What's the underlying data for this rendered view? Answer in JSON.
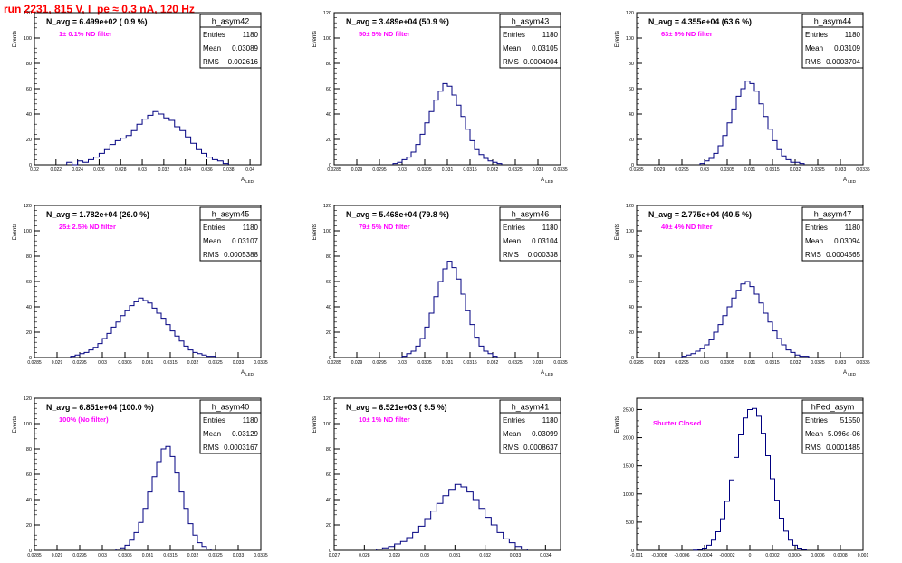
{
  "page": {
    "run_title": "run 2231,   815 V, I_pe ≈ 0.3 nA, 120 Hz",
    "text_color": "#ff0000",
    "filter_label_color": "#ff00ff",
    "hist_color": "#000080"
  },
  "stats_labels": {
    "entries": "Entries",
    "mean": "Mean",
    "rms": "RMS"
  },
  "chart_data": [
    {
      "type": "histogram",
      "name": "h_asym42",
      "navg": "N_avg = 6.499e+02 ( 0.9 %)",
      "filter": "1± 0.1% ND filter",
      "entries": "1180",
      "mean": "0.03089",
      "rms": "0.002616",
      "ylabel": "Events",
      "xlabel": "A_LED",
      "xlim": [
        0.02,
        0.041
      ],
      "ylim": [
        0,
        120
      ],
      "yticks": [
        0,
        20,
        40,
        60,
        80,
        100,
        120
      ],
      "xticks": [
        0.02,
        0.022,
        0.024,
        0.026,
        0.028,
        0.03,
        0.032,
        0.034,
        0.036,
        0.038,
        0.04
      ],
      "xtick_labels": [
        "0.02",
        "0.022",
        "0.024",
        "0.026",
        "0.028",
        "0.03",
        "0.032",
        "0.034",
        "0.036",
        "0.038",
        "0.04"
      ],
      "bins": [
        0.023,
        0.0235,
        0.024,
        0.0245,
        0.025,
        0.0255,
        0.026,
        0.0265,
        0.027,
        0.0275,
        0.028,
        0.0285,
        0.029,
        0.0295,
        0.03,
        0.0305,
        0.031,
        0.0315,
        0.032,
        0.0325,
        0.033,
        0.0335,
        0.034,
        0.0345,
        0.035,
        0.0355,
        0.036,
        0.0365,
        0.037,
        0.0375,
        0.038
      ],
      "counts": [
        2,
        0,
        3,
        2,
        4,
        6,
        9,
        12,
        16,
        19,
        21,
        23,
        27,
        32,
        36,
        39,
        42,
        40,
        37,
        35,
        30,
        27,
        22,
        17,
        12,
        9,
        6,
        4,
        3,
        1
      ]
    },
    {
      "type": "histogram",
      "name": "h_asym43",
      "navg": "N_avg = 3.489e+04 (50.9 %)",
      "filter": "50± 5% ND filter",
      "entries": "1180",
      "mean": "0.03105",
      "rms": "0.0004004",
      "ylabel": "Events",
      "xlabel": "A_LED",
      "xlim": [
        0.0285,
        0.0335
      ],
      "ylim": [
        0,
        120
      ],
      "yticks": [
        0,
        20,
        40,
        60,
        80,
        100,
        120
      ],
      "xticks": [
        0.0285,
        0.029,
        0.0295,
        0.03,
        0.0305,
        0.031,
        0.0315,
        0.032,
        0.0325,
        0.033,
        0.0335
      ],
      "xtick_labels": [
        "0.0285",
        "0.029",
        "0.0295",
        "0.03",
        "0.0305",
        "0.031",
        "0.0315",
        "0.032",
        "0.0325",
        "0.033",
        "0.0335"
      ],
      "bins": [
        0.0298,
        0.0299,
        0.03,
        0.0301,
        0.0302,
        0.0303,
        0.0304,
        0.0305,
        0.0306,
        0.0307,
        0.0308,
        0.0309,
        0.031,
        0.0311,
        0.0312,
        0.0313,
        0.0314,
        0.0315,
        0.0316,
        0.0317,
        0.0318,
        0.0319,
        0.032,
        0.0321,
        0.0322
      ],
      "counts": [
        1,
        2,
        4,
        6,
        10,
        16,
        24,
        33,
        42,
        51,
        58,
        64,
        62,
        55,
        47,
        38,
        28,
        19,
        12,
        8,
        5,
        3,
        2,
        1
      ]
    },
    {
      "type": "histogram",
      "name": "h_asym44",
      "navg": "N_avg = 4.355e+04 (63.6 %)",
      "filter": "63± 5% ND filter",
      "entries": "1180",
      "mean": "0.03109",
      "rms": "0.0003704",
      "ylabel": "Events",
      "xlabel": "A_LED",
      "xlim": [
        0.0285,
        0.0335
      ],
      "ylim": [
        0,
        120
      ],
      "yticks": [
        0,
        20,
        40,
        60,
        80,
        100,
        120
      ],
      "xticks": [
        0.0285,
        0.029,
        0.0295,
        0.03,
        0.0305,
        0.031,
        0.0315,
        0.032,
        0.0325,
        0.033,
        0.0335
      ],
      "xtick_labels": [
        "0.0285",
        "0.029",
        "0.0295",
        "0.03",
        "0.0305",
        "0.031",
        "0.0315",
        "0.032",
        "0.0325",
        "0.033",
        "0.0335"
      ],
      "bins": [
        0.0299,
        0.03,
        0.0301,
        0.0302,
        0.0303,
        0.0304,
        0.0305,
        0.0306,
        0.0307,
        0.0308,
        0.0309,
        0.031,
        0.0311,
        0.0312,
        0.0313,
        0.0314,
        0.0315,
        0.0316,
        0.0317,
        0.0318,
        0.0319,
        0.032,
        0.0321,
        0.0322
      ],
      "counts": [
        1,
        3,
        5,
        9,
        15,
        23,
        33,
        44,
        54,
        60,
        66,
        64,
        58,
        48,
        38,
        28,
        19,
        12,
        7,
        4,
        2,
        2,
        1
      ]
    },
    {
      "type": "histogram",
      "name": "h_asym45",
      "navg": "N_avg = 1.782e+04 (26.0 %)",
      "filter": "25± 2.5% ND filter",
      "entries": "1180",
      "mean": "0.03107",
      "rms": "0.0005388",
      "ylabel": "Events",
      "xlabel": "A_LED",
      "xlim": [
        0.0285,
        0.0335
      ],
      "ylim": [
        0,
        120
      ],
      "yticks": [
        0,
        20,
        40,
        60,
        80,
        100,
        120
      ],
      "xticks": [
        0.0285,
        0.029,
        0.0295,
        0.03,
        0.0305,
        0.031,
        0.0315,
        0.032,
        0.0325,
        0.033,
        0.0335
      ],
      "xtick_labels": [
        "0.0285",
        "0.029",
        "0.0295",
        "0.03",
        "0.0305",
        "0.031",
        "0.0315",
        "0.032",
        "0.0325",
        "0.033",
        "0.0335"
      ],
      "bins": [
        0.0293,
        0.0294,
        0.0295,
        0.0296,
        0.0297,
        0.0298,
        0.0299,
        0.03,
        0.0301,
        0.0302,
        0.0303,
        0.0304,
        0.0305,
        0.0306,
        0.0307,
        0.0308,
        0.0309,
        0.031,
        0.0311,
        0.0312,
        0.0313,
        0.0314,
        0.0315,
        0.0316,
        0.0317,
        0.0318,
        0.0319,
        0.032,
        0.0321,
        0.0322,
        0.0323,
        0.0324,
        0.0325
      ],
      "counts": [
        1,
        2,
        3,
        4,
        6,
        8,
        11,
        15,
        19,
        24,
        28,
        33,
        37,
        41,
        44,
        47,
        45,
        43,
        39,
        35,
        31,
        26,
        21,
        17,
        13,
        9,
        6,
        4,
        3,
        2,
        1,
        1
      ]
    },
    {
      "type": "histogram",
      "name": "h_asym46",
      "navg": "N_avg = 5.468e+04 (79.8 %)",
      "filter": "79± 5% ND filter",
      "entries": "1180",
      "mean": "0.03104",
      "rms": "0.000338",
      "ylabel": "Events",
      "xlabel": "A_LED",
      "xlim": [
        0.0285,
        0.0335
      ],
      "ylim": [
        0,
        120
      ],
      "yticks": [
        0,
        20,
        40,
        60,
        80,
        100,
        120
      ],
      "xticks": [
        0.0285,
        0.029,
        0.0295,
        0.03,
        0.0305,
        0.031,
        0.0315,
        0.032,
        0.0325,
        0.033,
        0.0335
      ],
      "xtick_labels": [
        "0.0285",
        "0.029",
        "0.0295",
        "0.03",
        "0.0305",
        "0.031",
        "0.0315",
        "0.032",
        "0.0325",
        "0.033",
        "0.0335"
      ],
      "bins": [
        0.03,
        0.0301,
        0.0302,
        0.0303,
        0.0304,
        0.0305,
        0.0306,
        0.0307,
        0.0308,
        0.0309,
        0.031,
        0.0311,
        0.0312,
        0.0313,
        0.0314,
        0.0315,
        0.0316,
        0.0317,
        0.0318,
        0.0319,
        0.032,
        0.0321
      ],
      "counts": [
        1,
        3,
        5,
        9,
        15,
        24,
        35,
        48,
        60,
        70,
        76,
        71,
        62,
        50,
        37,
        26,
        16,
        9,
        5,
        3,
        1
      ]
    },
    {
      "type": "histogram",
      "name": "h_asym47",
      "navg": "N_avg = 2.775e+04 (40.5 %)",
      "filter": "40± 4% ND filter",
      "entries": "1180",
      "mean": "0.03094",
      "rms": "0.0004565",
      "ylabel": "Events",
      "xlabel": "A_LED",
      "xlim": [
        0.0285,
        0.0335
      ],
      "ylim": [
        0,
        120
      ],
      "yticks": [
        0,
        20,
        40,
        60,
        80,
        100,
        120
      ],
      "xticks": [
        0.0285,
        0.029,
        0.0295,
        0.03,
        0.0305,
        0.031,
        0.0315,
        0.032,
        0.0325,
        0.033,
        0.0335
      ],
      "xtick_labels": [
        "0.0285",
        "0.029",
        "0.0295",
        "0.03",
        "0.0305",
        "0.031",
        "0.0315",
        "0.032",
        "0.0325",
        "0.033",
        "0.0335"
      ],
      "bins": [
        0.0295,
        0.0296,
        0.0297,
        0.0298,
        0.0299,
        0.03,
        0.0301,
        0.0302,
        0.0303,
        0.0304,
        0.0305,
        0.0306,
        0.0307,
        0.0308,
        0.0309,
        0.031,
        0.0311,
        0.0312,
        0.0313,
        0.0314,
        0.0315,
        0.0316,
        0.0317,
        0.0318,
        0.0319,
        0.032,
        0.0321,
        0.0322,
        0.0323
      ],
      "counts": [
        1,
        2,
        3,
        5,
        7,
        10,
        14,
        20,
        26,
        33,
        40,
        47,
        53,
        58,
        60,
        56,
        50,
        43,
        35,
        28,
        21,
        15,
        10,
        6,
        4,
        2,
        1,
        1
      ]
    },
    {
      "type": "histogram",
      "name": "h_asym40",
      "navg": "N_avg = 6.851e+04 (100.0 %)",
      "filter": "100% (No filter)",
      "entries": "1180",
      "mean": "0.03129",
      "rms": "0.0003167",
      "ylabel": "Events",
      "xlabel": "A_LED",
      "xlim": [
        0.0285,
        0.0335
      ],
      "ylim": [
        0,
        120
      ],
      "yticks": [
        0,
        20,
        40,
        60,
        80,
        100,
        120
      ],
      "xticks": [
        0.0285,
        0.029,
        0.0295,
        0.03,
        0.0305,
        0.031,
        0.0315,
        0.032,
        0.0325,
        0.033,
        0.0335
      ],
      "xtick_labels": [
        "0.0285",
        "0.029",
        "0.0295",
        "0.03",
        "0.0305",
        "0.031",
        "0.0315",
        "0.032",
        "0.0325",
        "0.033",
        "0.0335"
      ],
      "bins": [
        0.0303,
        0.0304,
        0.0305,
        0.0306,
        0.0307,
        0.0308,
        0.0309,
        0.031,
        0.0311,
        0.0312,
        0.0313,
        0.0314,
        0.0315,
        0.0316,
        0.0317,
        0.0318,
        0.0319,
        0.032,
        0.0321,
        0.0322,
        0.0323,
        0.0324
      ],
      "counts": [
        1,
        2,
        4,
        8,
        14,
        22,
        33,
        46,
        58,
        70,
        80,
        82,
        74,
        61,
        46,
        33,
        21,
        12,
        6,
        3,
        1
      ]
    },
    {
      "type": "histogram",
      "name": "h_asym41",
      "navg": "N_avg = 6.521e+03 ( 9.5 %)",
      "filter": "10± 1% ND filter",
      "entries": "1180",
      "mean": "0.03099",
      "rms": "0.0008637",
      "ylabel": "Events",
      "xlabel": "A_LED",
      "xlim": [
        0.027,
        0.0345
      ],
      "ylim": [
        0,
        120
      ],
      "yticks": [
        0,
        20,
        40,
        60,
        80,
        100,
        120
      ],
      "xticks": [
        0.027,
        0.028,
        0.029,
        0.03,
        0.031,
        0.032,
        0.033,
        0.034
      ],
      "xtick_labels": [
        "0.027",
        "0.028",
        "0.029",
        "0.03",
        "0.031",
        "0.032",
        "0.033",
        "0.034"
      ],
      "bins": [
        0.0284,
        0.0286,
        0.0288,
        0.029,
        0.0292,
        0.0294,
        0.0296,
        0.0298,
        0.03,
        0.0302,
        0.0304,
        0.0306,
        0.0308,
        0.031,
        0.0312,
        0.0314,
        0.0316,
        0.0318,
        0.032,
        0.0322,
        0.0324,
        0.0326,
        0.0328,
        0.033,
        0.0332,
        0.0334
      ],
      "counts": [
        1,
        2,
        3,
        5,
        7,
        10,
        14,
        19,
        25,
        31,
        37,
        43,
        48,
        52,
        50,
        46,
        40,
        33,
        26,
        20,
        14,
        9,
        6,
        3,
        1
      ]
    },
    {
      "type": "histogram",
      "name": "hPed_asym",
      "navg": "",
      "filter": "Shutter Closed",
      "entries": "51550",
      "mean": "5.096e-06",
      "rms": "0.0001485",
      "ylabel": "Events",
      "xlabel": "",
      "xlim": [
        -0.001,
        0.001
      ],
      "ylim": [
        0,
        2700
      ],
      "yticks": [
        0,
        500,
        1000,
        1500,
        2000,
        2500
      ],
      "xticks": [
        -0.001,
        -0.0008,
        -0.0006,
        -0.0004,
        -0.0002,
        0,
        0.0002,
        0.0004,
        0.0006,
        0.0008,
        0.001
      ],
      "xtick_labels": [
        "-0.001",
        "-0.0008",
        "-0.0006",
        "-0.0004",
        "-0.0002",
        "0",
        "0.0002",
        "0.0004",
        "0.0006",
        "0.0008",
        "0.001"
      ],
      "bins": [
        -0.0005,
        -0.00046,
        -0.00042,
        -0.00038,
        -0.00034,
        -0.0003,
        -0.00026,
        -0.00022,
        -0.00018,
        -0.00014,
        -0.0001,
        -6e-05,
        -2e-05,
        2e-05,
        6e-05,
        0.0001,
        0.00014,
        0.00018,
        0.00022,
        0.00026,
        0.0003,
        0.00034,
        0.00038,
        0.00042,
        0.00046,
        0.0005
      ],
      "counts": [
        5,
        15,
        40,
        90,
        180,
        330,
        560,
        870,
        1250,
        1650,
        2050,
        2350,
        2500,
        2520,
        2380,
        2080,
        1680,
        1270,
        890,
        570,
        340,
        180,
        90,
        40,
        15
      ]
    }
  ]
}
